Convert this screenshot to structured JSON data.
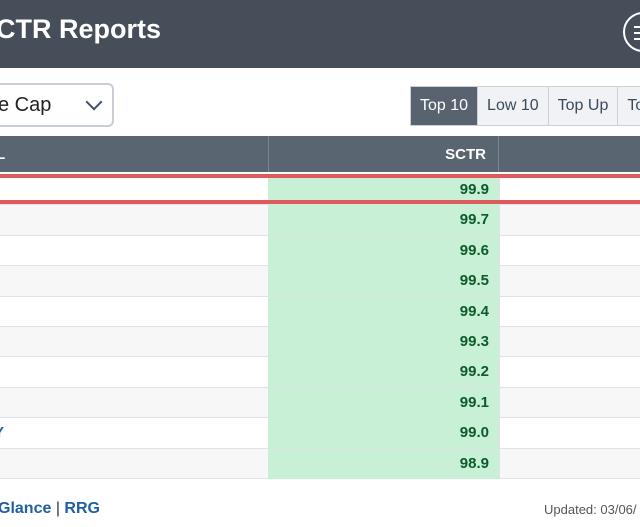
{
  "header": {
    "title": "CTR Reports",
    "menu_icon": "menu-icon"
  },
  "filter": {
    "selected_value": "e Cap"
  },
  "tabs": [
    {
      "label": "Top 10",
      "active": true
    },
    {
      "label": "Low 10",
      "active": false
    },
    {
      "label": "Top Up",
      "active": false
    },
    {
      "label": "Top",
      "active": false
    }
  ],
  "table": {
    "columns": {
      "symbol": "L",
      "sctr": "SCTR"
    },
    "rows": [
      {
        "symbol": "",
        "sctr": "99.9"
      },
      {
        "symbol": "",
        "sctr": "99.7"
      },
      {
        "symbol": "",
        "sctr": "99.6"
      },
      {
        "symbol": "",
        "sctr": "99.5"
      },
      {
        "symbol": "",
        "sctr": "99.4"
      },
      {
        "symbol": "",
        "sctr": "99.3"
      },
      {
        "symbol": "",
        "sctr": "99.2"
      },
      {
        "symbol": "",
        "sctr": "99.1"
      },
      {
        "symbol": "Y",
        "sctr": "99.0"
      },
      {
        "symbol": "",
        "sctr": "98.9"
      }
    ]
  },
  "footer": {
    "link_glance": "Glance",
    "separator": "|",
    "link_rrg": "RRG",
    "updated": "Updated: 03/06/"
  },
  "colors": {
    "header_bg": "#464e5a",
    "table_head_bg": "#5a6572",
    "sctr_cell_bg": "#c7f0d6",
    "sctr_text": "#0d5a2a",
    "highlight": "#df5a5a",
    "active_tab_bg": "#58636f"
  }
}
